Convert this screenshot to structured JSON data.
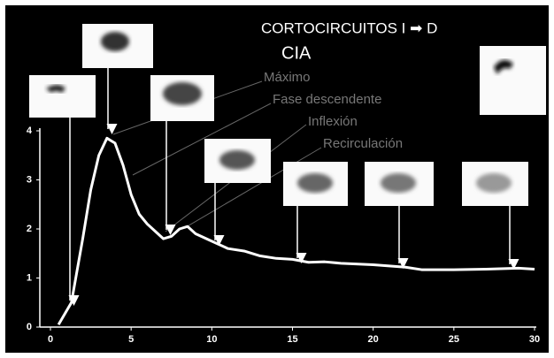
{
  "chart_data": {
    "type": "line",
    "title": "CORTOCIRCUITOS I ➡ D",
    "subtitle": "CIA",
    "annotations": [
      "Máximo",
      "Fase descendente",
      "Inflexión",
      "Recirculación"
    ],
    "x": [
      0.5,
      1.3,
      2,
      2.5,
      3,
      3.5,
      4,
      4.5,
      5,
      5.5,
      6,
      6.5,
      7,
      7.5,
      8,
      8.5,
      9,
      10,
      11,
      12,
      13,
      14,
      15,
      16,
      17,
      18,
      20,
      22,
      23,
      25,
      27,
      29,
      30
    ],
    "series": [
      {
        "color": "#ffffff",
        "values": [
          0.05,
          0.5,
          1.8,
          2.8,
          3.5,
          3.85,
          3.75,
          3.3,
          2.7,
          2.3,
          2.1,
          1.95,
          1.8,
          1.85,
          2.0,
          2.05,
          1.9,
          1.75,
          1.6,
          1.55,
          1.45,
          1.4,
          1.38,
          1.32,
          1.33,
          1.3,
          1.27,
          1.22,
          1.17,
          1.17,
          1.18,
          1.2,
          1.18
        ]
      }
    ],
    "xlim": [
      0,
      30
    ],
    "xticks": [
      0,
      5,
      10,
      15,
      20,
      25,
      30
    ],
    "ylim": [
      0,
      4
    ],
    "yticks": [
      0,
      1,
      2,
      3,
      4
    ]
  }
}
